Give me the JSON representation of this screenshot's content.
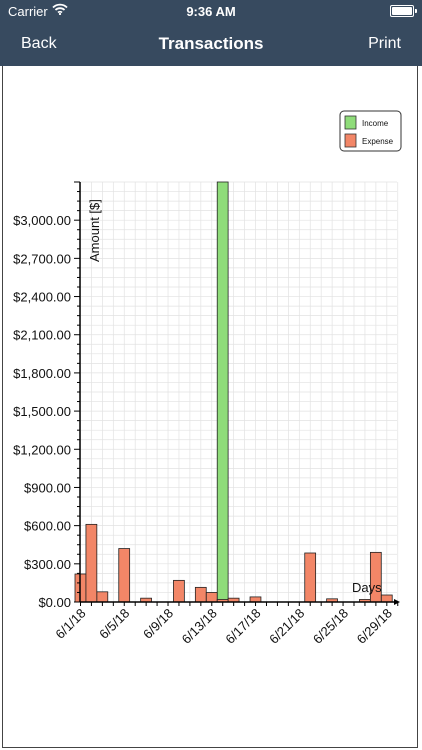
{
  "status_bar": {
    "carrier": "Carrier",
    "time": "9:36 AM"
  },
  "nav": {
    "back_label": "Back",
    "title": "Transactions",
    "print_label": "Print"
  },
  "colors": {
    "nav_bg": "#374a5f",
    "income": "#8fdc7a",
    "expense": "#f28667",
    "grid": "#e2e2e2"
  },
  "icons": {
    "wifi": "wifi-icon",
    "battery": "battery-icon"
  },
  "chart_data": {
    "type": "bar",
    "xlabel": "Days",
    "ylabel": "Amount [$]",
    "ylim": [
      0,
      3300
    ],
    "y_ticks": [
      "$0.00",
      "$300.00",
      "$600.00",
      "$900.00",
      "$1,200.00",
      "$1,500.00",
      "$1,800.00",
      "$2,100.00",
      "$2,400.00",
      "$2,700.00",
      "$3,000.00"
    ],
    "y_tick_values": [
      0,
      300,
      600,
      900,
      1200,
      1500,
      1800,
      2100,
      2400,
      2700,
      3000
    ],
    "x_ticks": [
      "6/1/18",
      "6/5/18",
      "6/9/18",
      "6/13/18",
      "6/17/18",
      "6/21/18",
      "6/25/18",
      "6/29/18"
    ],
    "x_tick_days": [
      1,
      5,
      9,
      13,
      17,
      21,
      25,
      29
    ],
    "grid": true,
    "legend_position": "top-right",
    "series": [
      {
        "name": "Income",
        "bars": [
          {
            "day": 14,
            "value": 3300
          }
        ]
      },
      {
        "name": "Expense",
        "bars": [
          {
            "day": 1,
            "value": 220
          },
          {
            "day": 2,
            "value": 610
          },
          {
            "day": 3,
            "value": 80
          },
          {
            "day": 5,
            "value": 420
          },
          {
            "day": 7,
            "value": 30
          },
          {
            "day": 10,
            "value": 170
          },
          {
            "day": 12,
            "value": 115
          },
          {
            "day": 13,
            "value": 75
          },
          {
            "day": 14,
            "value": 20
          },
          {
            "day": 15,
            "value": 30
          },
          {
            "day": 17,
            "value": 40
          },
          {
            "day": 22,
            "value": 385
          },
          {
            "day": 24,
            "value": 25
          },
          {
            "day": 27,
            "value": 20
          },
          {
            "day": 28,
            "value": 390
          },
          {
            "day": 29,
            "value": 55
          }
        ]
      }
    ]
  }
}
